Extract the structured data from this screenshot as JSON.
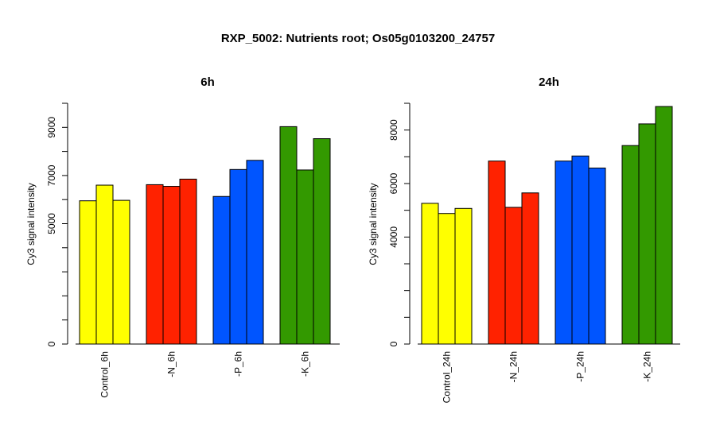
{
  "figure": {
    "title": "RXP_5002: Nutrients root; Os05g0103200_24757"
  },
  "chart_data": [
    {
      "type": "bar",
      "title": "6h",
      "ylabel": "Cy3 signal intensity",
      "ylim": [
        0,
        10000
      ],
      "yticks": [
        0,
        5000,
        7000,
        9000
      ],
      "groups": [
        {
          "label": "Control_6h",
          "color": "#ffff00",
          "values": [
            5950,
            6600,
            5970
          ]
        },
        {
          "label": "-N_6h",
          "color": "#ff2200",
          "values": [
            6620,
            6550,
            6850
          ]
        },
        {
          "label": "-P_6h",
          "color": "#0055ff",
          "values": [
            6130,
            7250,
            7630
          ]
        },
        {
          "label": "-K_6h",
          "color": "#339900",
          "values": [
            9030,
            7230,
            8530
          ]
        }
      ]
    },
    {
      "type": "bar",
      "title": "24h",
      "ylabel": "Cy3 signal intensity",
      "ylim": [
        0,
        9000
      ],
      "yticks": [
        0,
        4000,
        6000,
        8000
      ],
      "groups": [
        {
          "label": "Control_24h",
          "color": "#ffff00",
          "values": [
            5260,
            4880,
            5070
          ]
        },
        {
          "label": "-N_24h",
          "color": "#ff2200",
          "values": [
            6840,
            5110,
            5650
          ]
        },
        {
          "label": "-P_24h",
          "color": "#0055ff",
          "values": [
            6840,
            7030,
            6580
          ]
        },
        {
          "label": "-K_24h",
          "color": "#339900",
          "values": [
            7420,
            8230,
            8880
          ]
        }
      ]
    }
  ]
}
